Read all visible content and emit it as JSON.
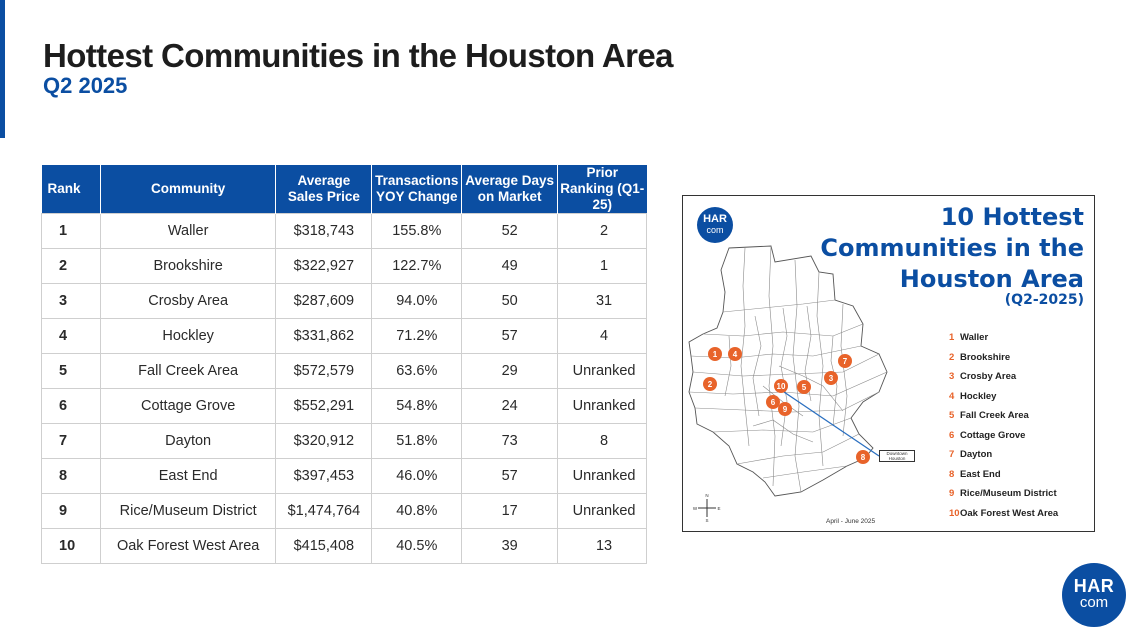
{
  "slide": {
    "title": "Hottest Communities in the Houston Area",
    "subtitle": "Q2 2025",
    "accent_color": "#0b4ea2",
    "highlight_color": "#e8632a"
  },
  "table": {
    "headers": [
      "Rank",
      "Community",
      "Average Sales Price",
      "Transactions YOY Change",
      "Average Days on Market",
      "Prior Ranking (Q1-25)"
    ],
    "rows": [
      [
        "1",
        "Waller",
        "$318,743",
        "155.8%",
        "52",
        "2"
      ],
      [
        "2",
        "Brookshire",
        "$322,927",
        "122.7%",
        "49",
        "1"
      ],
      [
        "3",
        "Crosby Area",
        "$287,609",
        "94.0%",
        "50",
        "31"
      ],
      [
        "4",
        "Hockley",
        "$331,862",
        "71.2%",
        "57",
        "4"
      ],
      [
        "5",
        "Fall Creek Area",
        "$572,579",
        "63.6%",
        "29",
        "Unranked"
      ],
      [
        "6",
        "Cottage Grove",
        "$552,291",
        "54.8%",
        "24",
        "Unranked"
      ],
      [
        "7",
        "Dayton",
        "$320,912",
        "51.8%",
        "73",
        "8"
      ],
      [
        "8",
        "East End",
        "$397,453",
        "46.0%",
        "57",
        "Unranked"
      ],
      [
        "9",
        "Rice/Museum District",
        "$1,474,764",
        "40.8%",
        "17",
        "Unranked"
      ],
      [
        "10",
        "Oak Forest West Area",
        "$415,408",
        "40.5%",
        "39",
        "13"
      ]
    ]
  },
  "map": {
    "logo_text": "HAR",
    "logo_sub": "com",
    "title": "10 Hottest Communities in the Houston Area",
    "subtitle": "(Q2-2025)",
    "legend": [
      {
        "num": "1",
        "label": "Waller"
      },
      {
        "num": "2",
        "label": "Brookshire"
      },
      {
        "num": "3",
        "label": "Crosby Area"
      },
      {
        "num": "4",
        "label": "Hockley"
      },
      {
        "num": "5",
        "label": "Fall Creek Area"
      },
      {
        "num": "6",
        "label": "Cottage Grove"
      },
      {
        "num": "7",
        "label": "Dayton"
      },
      {
        "num": "8",
        "label": "East End"
      },
      {
        "num": "9",
        "label": "Rice/Museum District"
      },
      {
        "num": "10",
        "label": "Oak Forest West Area"
      }
    ],
    "downtown_label": "Downtown Houston",
    "footer": "April - June 2025",
    "compass": {
      "n": "N",
      "s": "S",
      "e": "E",
      "w": "W"
    }
  },
  "logo": {
    "text": "HAR",
    "sub": "com"
  }
}
